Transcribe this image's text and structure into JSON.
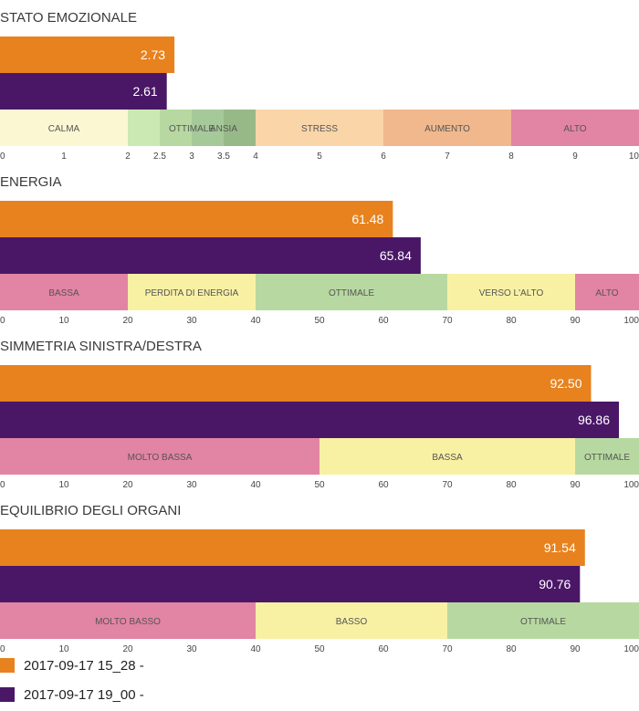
{
  "legend": [
    {
      "label": "2017-09-17 15_28 -",
      "color": "#e8821e"
    },
    {
      "label": "2017-09-17 19_00 -",
      "color": "#4a1767"
    }
  ],
  "chart_data": [
    {
      "type": "bar",
      "title": "STATO EMOZIONALE",
      "values": [
        2.73,
        2.61
      ],
      "value_labels": [
        "2.73",
        "2.61"
      ],
      "series": [
        {
          "name": "2017-09-17 15_28 -",
          "value": 2.73
        },
        {
          "name": "2017-09-17 19_00 -",
          "value": 2.61
        }
      ],
      "xlim": [
        0,
        10
      ],
      "ticks": [
        0,
        1,
        2,
        2.5,
        3,
        3.5,
        4,
        5,
        6,
        7,
        8,
        9,
        10
      ],
      "tick_labels": [
        "0",
        "1",
        "2",
        "2.5",
        "3",
        "3.5",
        "4",
        "5",
        "6",
        "7",
        "8",
        "9",
        "10"
      ],
      "bands": [
        {
          "label": "CALMA",
          "from": 0,
          "to": 2,
          "color": "#fbf7d2"
        },
        {
          "label": "OTTIMALE",
          "from": 2,
          "to": 2.5,
          "color": "#cbe9b2"
        },
        {
          "label": "",
          "from": 2.5,
          "to": 3,
          "color": "#b7d9a1"
        },
        {
          "label": "ANSIA",
          "from": 3,
          "to": 3.5,
          "color": "#a6c99a"
        },
        {
          "label": "",
          "from": 3.5,
          "to": 4,
          "color": "#97b988"
        },
        {
          "label": "STRESS",
          "from": 4,
          "to": 6,
          "color": "#f9d5a8"
        },
        {
          "label": "AUMENTO",
          "from": 6,
          "to": 8,
          "color": "#f0b88c"
        },
        {
          "label": "ALTO",
          "from": 8,
          "to": 10,
          "color": "#e284a3"
        }
      ],
      "band_label_positions": [
        {
          "label": "CALMA",
          "at": 1
        },
        {
          "label": "OTTIMALE",
          "at": 3
        },
        {
          "label": "ANSIA",
          "at": 3.5
        },
        {
          "label": "STRESS",
          "at": 5
        },
        {
          "label": "AUMENTO",
          "at": 7
        },
        {
          "label": "ALTO",
          "at": 9
        }
      ]
    },
    {
      "type": "bar",
      "title": "ENERGIA",
      "values": [
        61.48,
        65.84
      ],
      "value_labels": [
        "61.48",
        "65.84"
      ],
      "series": [
        {
          "name": "2017-09-17 15_28 -",
          "value": 61.48
        },
        {
          "name": "2017-09-17 19_00 -",
          "value": 65.84
        }
      ],
      "xlim": [
        0,
        100
      ],
      "ticks": [
        0,
        10,
        20,
        30,
        40,
        50,
        60,
        70,
        80,
        90,
        100
      ],
      "tick_labels": [
        "0",
        "10",
        "20",
        "30",
        "40",
        "50",
        "60",
        "70",
        "80",
        "90",
        "100"
      ],
      "bands": [
        {
          "label": "BASSA",
          "from": 0,
          "to": 20,
          "color": "#e284a3"
        },
        {
          "label": "PERDITA DI ENERGIA",
          "from": 20,
          "to": 40,
          "color": "#f8f1a4"
        },
        {
          "label": "OTTIMALE",
          "from": 40,
          "to": 70,
          "color": "#b7d9a1"
        },
        {
          "label": "VERSO L'ALTO",
          "from": 70,
          "to": 90,
          "color": "#f8f1a4"
        },
        {
          "label": "ALTO",
          "from": 90,
          "to": 100,
          "color": "#e284a3"
        }
      ],
      "band_label_positions": [
        {
          "label": "BASSA",
          "at": 10
        },
        {
          "label": "PERDITA DI ENERGIA",
          "at": 30
        },
        {
          "label": "OTTIMALE",
          "at": 55
        },
        {
          "label": "VERSO L'ALTO",
          "at": 80
        },
        {
          "label": "ALTO",
          "at": 95
        }
      ]
    },
    {
      "type": "bar",
      "title": "SIMMETRIA SINISTRA/DESTRA",
      "values": [
        92.5,
        96.86
      ],
      "value_labels": [
        "92.50",
        "96.86"
      ],
      "series": [
        {
          "name": "2017-09-17 15_28 -",
          "value": 92.5
        },
        {
          "name": "2017-09-17 19_00 -",
          "value": 96.86
        }
      ],
      "xlim": [
        0,
        100
      ],
      "ticks": [
        0,
        10,
        20,
        30,
        40,
        50,
        60,
        70,
        80,
        90,
        100
      ],
      "tick_labels": [
        "0",
        "10",
        "20",
        "30",
        "40",
        "50",
        "60",
        "70",
        "80",
        "90",
        "100"
      ],
      "bands": [
        {
          "label": "MOLTO BASSA",
          "from": 0,
          "to": 50,
          "color": "#e284a3"
        },
        {
          "label": "BASSA",
          "from": 50,
          "to": 90,
          "color": "#f8f1a4"
        },
        {
          "label": "OTTIMALE",
          "from": 90,
          "to": 100,
          "color": "#b7d9a1"
        }
      ],
      "band_label_positions": [
        {
          "label": "MOLTO BASSA",
          "at": 25
        },
        {
          "label": "BASSA",
          "at": 70
        },
        {
          "label": "OTTIMALE",
          "at": 95
        }
      ]
    },
    {
      "type": "bar",
      "title": "EQUILIBRIO DEGLI ORGANI",
      "values": [
        91.54,
        90.76
      ],
      "value_labels": [
        "91.54",
        "90.76"
      ],
      "series": [
        {
          "name": "2017-09-17 15_28 -",
          "value": 91.54
        },
        {
          "name": "2017-09-17 19_00 -",
          "value": 90.76
        }
      ],
      "xlim": [
        0,
        100
      ],
      "ticks": [
        0,
        10,
        20,
        30,
        40,
        50,
        60,
        70,
        80,
        90,
        100
      ],
      "tick_labels": [
        "0",
        "10",
        "20",
        "30",
        "40",
        "50",
        "60",
        "70",
        "80",
        "90",
        "100"
      ],
      "bands": [
        {
          "label": "MOLTO BASSO",
          "from": 0,
          "to": 40,
          "color": "#e284a3"
        },
        {
          "label": "BASSO",
          "from": 40,
          "to": 70,
          "color": "#f8f1a4"
        },
        {
          "label": "OTTIMALE",
          "from": 70,
          "to": 100,
          "color": "#b7d9a1"
        }
      ],
      "band_label_positions": [
        {
          "label": "MOLTO BASSO",
          "at": 20
        },
        {
          "label": "BASSO",
          "at": 55
        },
        {
          "label": "OTTIMALE",
          "at": 85
        }
      ]
    }
  ]
}
